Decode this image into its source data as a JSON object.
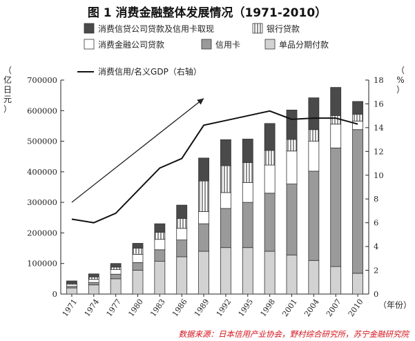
{
  "title": "图 1  消费金融整体发展情况（1971-2010）",
  "source": "数据来源：日本信用产业协会，野村综合研究所，苏宁金融研究院",
  "colors": {
    "consumer_credit_cards": "#4a4a4a",
    "bank_loans": "#ffffff",
    "finance_companies": "#ffffff",
    "credit_card": "#9a9a9a",
    "installment": "#d2d2d2",
    "gdp_line": "#111111",
    "axis": "#222222"
  },
  "chart_data": {
    "type": "bar",
    "stacked": true,
    "categories": [
      "1971",
      "1974",
      "1977",
      "1980",
      "1983",
      "1986",
      "1989",
      "1992",
      "1995",
      "1998",
      "2001",
      "2004",
      "2007",
      "2010"
    ],
    "xlabel": "（年份）",
    "ylabel_left": "（亿日元）",
    "ylabel_right": "（%）",
    "ylim_left": [
      0,
      700000
    ],
    "yticks_left": [
      "0",
      "100000",
      "200000",
      "300000",
      "400000",
      "500000",
      "600000",
      "700000"
    ],
    "ylim_right": [
      0,
      18
    ],
    "yticks_right": [
      "0",
      "2",
      "4",
      "6",
      "8",
      "10",
      "12",
      "14",
      "16",
      "18"
    ],
    "series": [
      {
        "name": "单品分期付款",
        "key": "installment",
        "pattern": "solid",
        "values": [
          20000,
          30000,
          50000,
          78000,
          107000,
          122000,
          140000,
          152000,
          152000,
          140000,
          128000,
          110000,
          90000,
          68000
        ]
      },
      {
        "name": "信用卡",
        "key": "credit_card",
        "pattern": "solid",
        "values": [
          5000,
          8000,
          15000,
          25000,
          38000,
          55000,
          90000,
          128000,
          148000,
          190000,
          232000,
          292000,
          388000,
          470000
        ]
      },
      {
        "name": "消费金融公司贷款",
        "key": "finance_companies",
        "pattern": "solid",
        "values": [
          7000,
          10000,
          15000,
          27000,
          34000,
          38000,
          40000,
          52000,
          65000,
          92000,
          108000,
          98000,
          78000,
          28000
        ]
      },
      {
        "name": "银行贷款",
        "key": "bank_loans",
        "pattern": "vertical-stripes",
        "values": [
          3000,
          8000,
          8000,
          20000,
          23000,
          32000,
          100000,
          88000,
          65000,
          48000,
          38000,
          38000,
          28000,
          22000
        ]
      },
      {
        "name": "消费信贷公司贷款及信用卡取现",
        "key": "consumer_credit_cards",
        "pattern": "solid",
        "values": [
          8000,
          10000,
          12000,
          16000,
          28000,
          44000,
          75000,
          85000,
          77000,
          88000,
          96000,
          104000,
          92000,
          42000
        ]
      }
    ],
    "line": {
      "name": "消费信用/名义GDP（右轴）",
      "axis": "right",
      "values": [
        6.3,
        6.0,
        6.8,
        8.7,
        10.6,
        11.4,
        14.2,
        14.6,
        15.0,
        15.4,
        14.7,
        14.8,
        14.8,
        14.3
      ]
    },
    "arrow": {
      "from": {
        "category": "1971",
        "value": 300000
      },
      "to": {
        "category": "1989",
        "value": 640000
      }
    },
    "legend": {
      "placement": "top"
    }
  }
}
